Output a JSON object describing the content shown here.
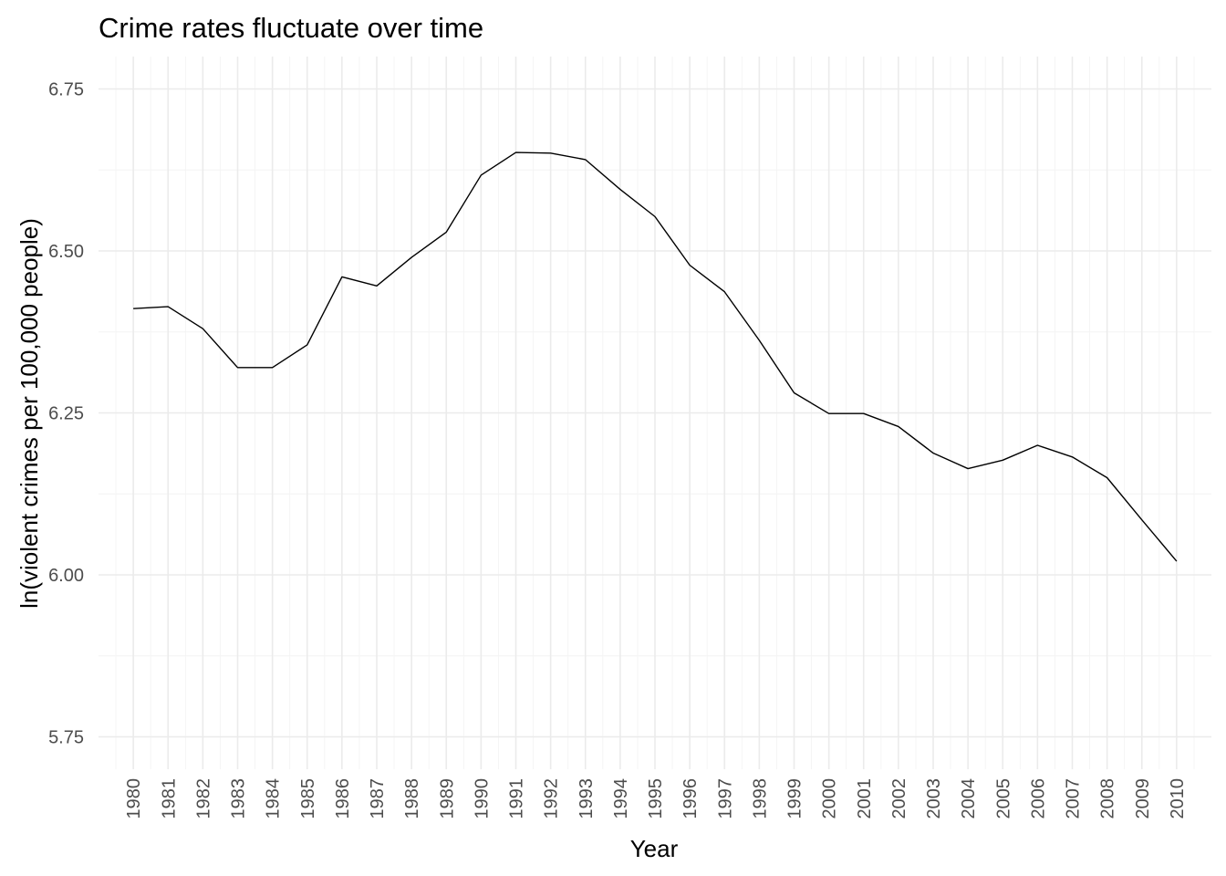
{
  "chart_data": {
    "type": "line",
    "title": "Crime rates fluctuate over time",
    "xlabel": "Year",
    "ylabel": "ln(violent crimes per 100,000 people)",
    "xlim": [
      1979,
      2011
    ],
    "ylim": [
      5.7,
      6.8
    ],
    "grid": true,
    "y_ticks": [
      5.75,
      6.0,
      6.25,
      6.5,
      6.75
    ],
    "y_tick_labels": [
      "5.75",
      "6.00",
      "6.25",
      "6.50",
      "6.75"
    ],
    "x_tick_labels": [
      "1980",
      "1981",
      "1982",
      "1983",
      "1984",
      "1985",
      "1986",
      "1987",
      "1988",
      "1989",
      "1990",
      "1991",
      "1992",
      "1993",
      "1994",
      "1995",
      "1996",
      "1997",
      "1998",
      "1999",
      "2000",
      "2001",
      "2002",
      "2003",
      "2004",
      "2005",
      "2006",
      "2007",
      "2008",
      "2009",
      "2010"
    ],
    "series": [
      {
        "x": [
          1980,
          1981,
          1982,
          1983,
          1984,
          1985,
          1986,
          1987,
          1988,
          1989,
          1990,
          1991,
          1992,
          1993,
          1994,
          1995,
          1996,
          1997,
          1998,
          1999,
          2000,
          2001,
          2002,
          2003,
          2004,
          2005,
          2006,
          2007,
          2008,
          2009,
          2010
        ],
        "values": [
          6.411,
          6.414,
          6.38,
          6.32,
          6.32,
          6.355,
          6.46,
          6.446,
          6.49,
          6.529,
          6.617,
          6.652,
          6.651,
          6.641,
          6.595,
          6.553,
          6.478,
          6.437,
          6.362,
          6.281,
          6.249,
          6.249,
          6.229,
          6.188,
          6.164,
          6.177,
          6.2,
          6.182,
          6.15,
          6.085,
          6.021
        ],
        "color": "#000000"
      }
    ]
  }
}
